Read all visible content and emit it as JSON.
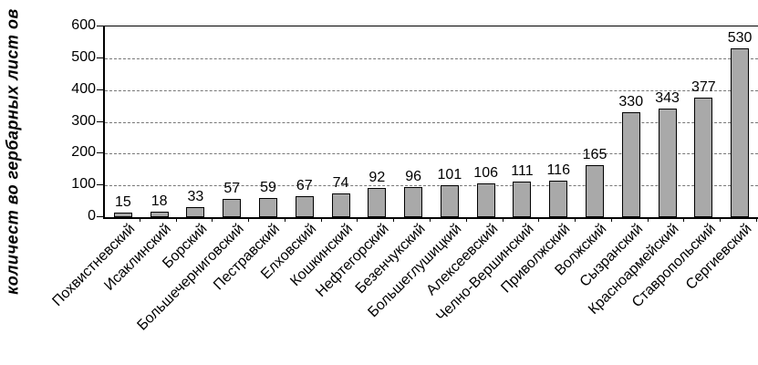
{
  "chart_data": {
    "type": "bar",
    "title": "",
    "xlabel": "",
    "ylabel": "количест во гербарных лист ов",
    "ylim": [
      0,
      600
    ],
    "yticks": [
      0,
      100,
      200,
      300,
      400,
      500,
      600
    ],
    "grid": "horizontal dashed at every 100",
    "legend_position": "none",
    "bar_color": "#a9a9a9",
    "bar_border_color": "#000000",
    "categories": [
      "Похвистневский",
      "Исаклинский",
      "Борский",
      "Большечерниговский",
      "Пестравский",
      "Елховский",
      "Кошкинский",
      "Нефтегорский",
      "Безенчукский",
      "Большеглушицкий",
      "Алексеевский",
      "Челно-Вершинский",
      "Приволжский",
      "Волжский",
      "Сызранский",
      "Красноармейский",
      "Ставропольский",
      "Сергиевский"
    ],
    "values": [
      15,
      18,
      33,
      57,
      59,
      67,
      74,
      92,
      96,
      101,
      106,
      111,
      116,
      165,
      330,
      343,
      377,
      530
    ]
  }
}
